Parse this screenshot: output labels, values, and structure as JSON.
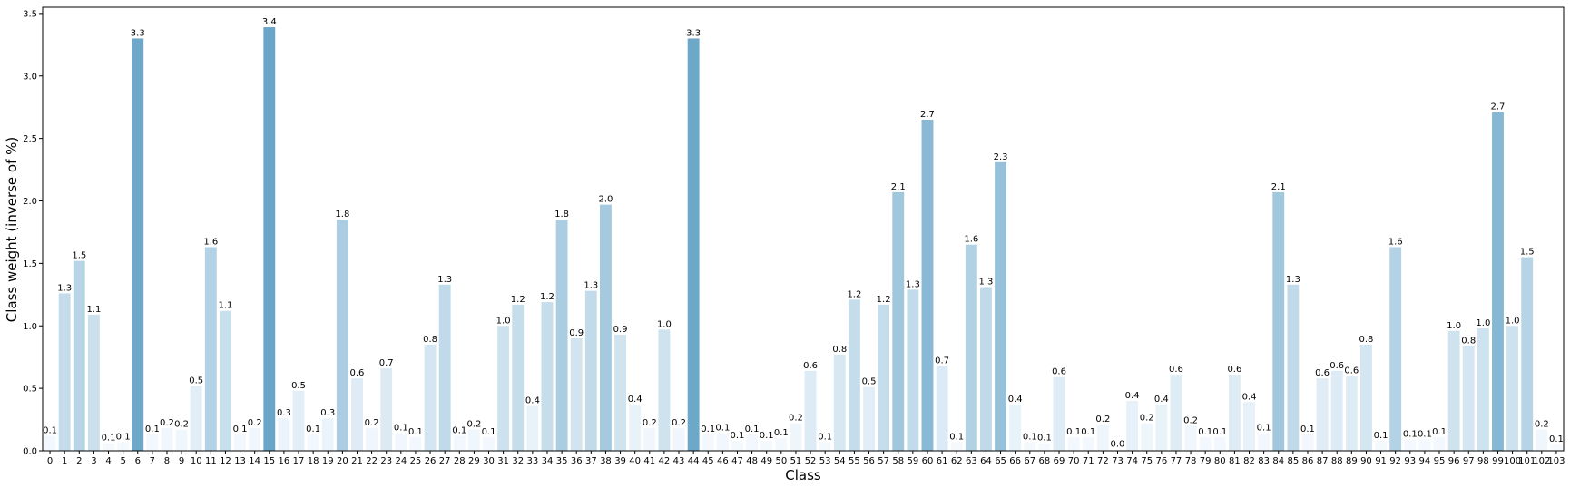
{
  "chart_data": {
    "type": "bar",
    "title": "",
    "xlabel": "Class",
    "ylabel": "Class weight (inverse of %)",
    "ylim": [
      0,
      3.55
    ],
    "yticks": [
      "0.0",
      "0.5",
      "1.0",
      "1.5",
      "2.0",
      "2.5",
      "3.0",
      "3.5"
    ],
    "ytick_values": [
      0,
      0.5,
      1.0,
      1.5,
      2.0,
      2.5,
      3.0,
      3.5
    ],
    "grid": false,
    "legend": "none",
    "palette": {
      "low": "#f7fbff",
      "high": "#6aa6c8"
    },
    "categories": [
      "0",
      "1",
      "2",
      "3",
      "4",
      "5",
      "6",
      "7",
      "8",
      "9",
      "10",
      "11",
      "12",
      "13",
      "14",
      "15",
      "16",
      "17",
      "18",
      "19",
      "20",
      "21",
      "22",
      "23",
      "24",
      "25",
      "26",
      "27",
      "28",
      "29",
      "30",
      "31",
      "32",
      "33",
      "34",
      "35",
      "36",
      "37",
      "38",
      "39",
      "40",
      "41",
      "42",
      "43",
      "44",
      "45",
      "46",
      "47",
      "48",
      "49",
      "50",
      "51",
      "52",
      "53",
      "54",
      "55",
      "56",
      "57",
      "58",
      "59",
      "60",
      "61",
      "62",
      "63",
      "64",
      "65",
      "66",
      "67",
      "68",
      "69",
      "70",
      "71",
      "72",
      "73",
      "74",
      "75",
      "76",
      "77",
      "78",
      "79",
      "80",
      "81",
      "82",
      "83",
      "84",
      "85",
      "86",
      "87",
      "88",
      "89",
      "90",
      "91",
      "92",
      "93",
      "94",
      "95",
      "96",
      "97",
      "98",
      "99",
      "100",
      "101",
      "102",
      "103"
    ],
    "values": [
      0.12,
      1.26,
      1.52,
      1.09,
      0.06,
      0.07,
      3.3,
      0.13,
      0.18,
      0.17,
      0.52,
      1.63,
      1.12,
      0.13,
      0.18,
      3.39,
      0.26,
      0.48,
      0.13,
      0.26,
      1.85,
      0.58,
      0.18,
      0.66,
      0.14,
      0.11,
      0.85,
      1.33,
      0.12,
      0.17,
      0.11,
      1.0,
      1.17,
      0.36,
      1.19,
      1.85,
      0.9,
      1.28,
      1.97,
      0.93,
      0.37,
      0.18,
      0.97,
      0.18,
      3.3,
      0.13,
      0.14,
      0.08,
      0.13,
      0.08,
      0.1,
      0.22,
      0.64,
      0.07,
      0.77,
      1.21,
      0.51,
      1.17,
      2.07,
      1.29,
      2.65,
      0.68,
      0.07,
      1.65,
      1.31,
      2.31,
      0.37,
      0.07,
      0.06,
      0.59,
      0.11,
      0.11,
      0.21,
      0.01,
      0.4,
      0.22,
      0.37,
      0.61,
      0.2,
      0.11,
      0.11,
      0.61,
      0.39,
      0.14,
      2.07,
      1.33,
      0.13,
      0.58,
      0.64,
      0.6,
      0.85,
      0.08,
      1.63,
      0.09,
      0.09,
      0.11,
      0.96,
      0.84,
      0.98,
      2.71,
      1.0,
      1.55,
      0.17,
      0.05
    ],
    "value_labels": [
      "0.1",
      "1.3",
      "1.5",
      "1.1",
      "0.1",
      "0.1",
      "3.3",
      "0.1",
      "0.2",
      "0.2",
      "0.5",
      "1.6",
      "1.1",
      "0.1",
      "0.2",
      "3.4",
      "0.3",
      "0.5",
      "0.1",
      "0.3",
      "1.8",
      "0.6",
      "0.2",
      "0.7",
      "0.1",
      "0.1",
      "0.8",
      "1.3",
      "0.1",
      "0.2",
      "0.1",
      "1.0",
      "1.2",
      "0.4",
      "1.2",
      "1.8",
      "0.9",
      "1.3",
      "2.0",
      "0.9",
      "0.4",
      "0.2",
      "1.0",
      "0.2",
      "3.3",
      "0.1",
      "0.1",
      "0.1",
      "0.1",
      "0.1",
      "0.1",
      "0.2",
      "0.6",
      "0.1",
      "0.8",
      "1.2",
      "0.5",
      "1.2",
      "2.1",
      "1.3",
      "2.7",
      "0.7",
      "0.1",
      "1.6",
      "1.3",
      "2.3",
      "0.4",
      "0.1",
      "0.1",
      "0.6",
      "0.1",
      "0.1",
      "0.2",
      "0.0",
      "0.4",
      "0.2",
      "0.4",
      "0.6",
      "0.2",
      "0.1",
      "0.1",
      "0.6",
      "0.4",
      "0.1",
      "2.1",
      "1.3",
      "0.1",
      "0.6",
      "0.6",
      "0.6",
      "0.8",
      "0.1",
      "1.6",
      "0.1",
      "0.1",
      "0.1",
      "1.0",
      "0.8",
      "1.0",
      "2.7",
      "1.0",
      "1.5",
      "0.2",
      "0.1"
    ]
  }
}
